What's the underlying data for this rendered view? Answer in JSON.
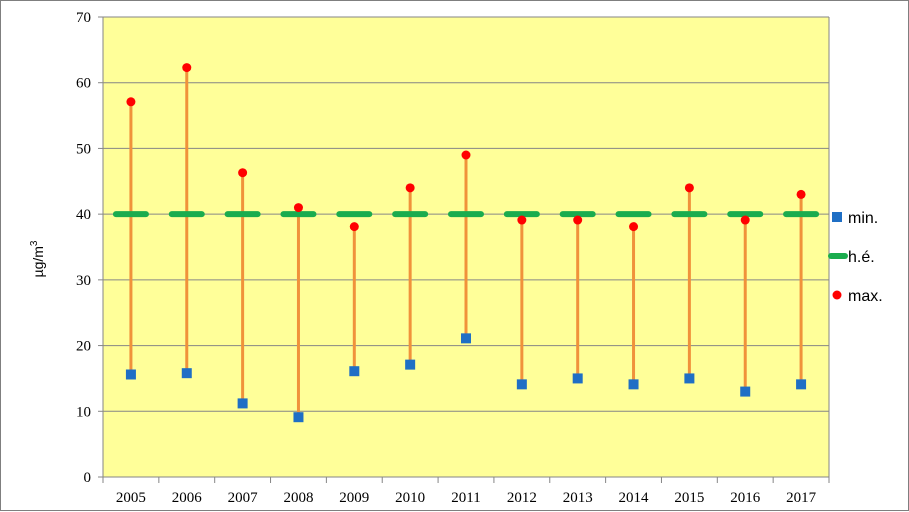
{
  "chart_data": {
    "type": "scatter",
    "categories": [
      "2005",
      "2006",
      "2007",
      "2008",
      "2009",
      "2010",
      "2011",
      "2012",
      "2013",
      "2014",
      "2015",
      "2016",
      "2017"
    ],
    "series": [
      {
        "name": "min.",
        "values": [
          15.6,
          15.8,
          11.2,
          9.1,
          16.1,
          17.1,
          21.1,
          14.1,
          15.0,
          14.1,
          15.0,
          13.0,
          14.1
        ],
        "color": "#1f6fc5",
        "marker": "square"
      },
      {
        "name": "h.é.",
        "values": [
          40,
          40,
          40,
          40,
          40,
          40,
          40,
          40,
          40,
          40,
          40,
          40,
          40
        ],
        "color": "#1aac4e",
        "marker": "dash"
      },
      {
        "name": "max.",
        "values": [
          57.1,
          62.3,
          46.3,
          41.0,
          38.1,
          44.0,
          49.0,
          39.1,
          39.1,
          38.1,
          44.0,
          39.1,
          43.0
        ],
        "color": "#ff0000",
        "marker": "circle"
      }
    ],
    "range_line_color": "#f0923b",
    "ylabel": "µg/m",
    "ylabel_sup": "3",
    "ylim": [
      0,
      70
    ],
    "yticks": [
      "0",
      "10",
      "20",
      "30",
      "40",
      "50",
      "60",
      "70"
    ],
    "grid": true,
    "plot_background": "#ffff99",
    "legend_position": "right"
  }
}
